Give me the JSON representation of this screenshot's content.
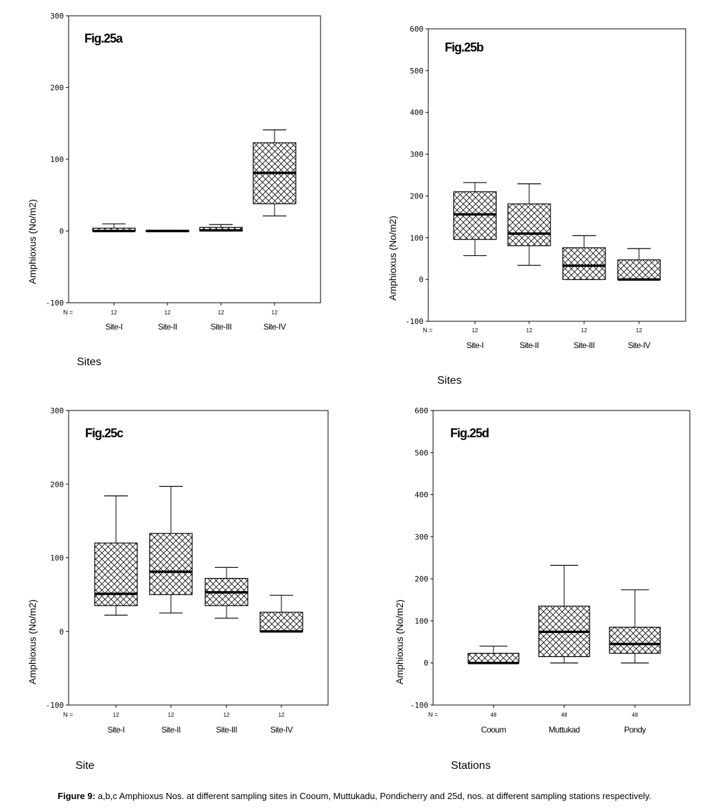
{
  "caption": {
    "label": "Figure 9:",
    "text": "a,b,c Amphioxus Nos. at different sampling sites in Cooum, Muttukadu, Pondicherry and 25d, nos. at different sampling stations respectively."
  },
  "chart_data": [
    {
      "type": "boxplot",
      "panel_label": "Fig.25a",
      "ylabel": "Amphioxus (No/m2)",
      "xlabel": "Sites",
      "ylim": [
        -100,
        300
      ],
      "yticks": [
        -100,
        0,
        100,
        200,
        300
      ],
      "n_label": "N =",
      "categories": [
        "Site-I",
        "Site-II",
        "Site-III",
        "Site-IV"
      ],
      "n": [
        "12",
        "12",
        "12",
        "12"
      ],
      "boxes": [
        {
          "min": 0,
          "q1": 0,
          "median": 0,
          "q3": 4,
          "max": 10
        },
        {
          "min": 0,
          "q1": 0,
          "median": 0,
          "q3": 1,
          "max": 1
        },
        {
          "min": 0,
          "q1": 0,
          "median": 1,
          "q3": 5,
          "max": 9
        },
        {
          "min": 21,
          "q1": 38,
          "median": 81,
          "q3": 123,
          "max": 141
        }
      ]
    },
    {
      "type": "boxplot",
      "panel_label": "Fig.25b",
      "ylabel": "Amphioxus (No/m2)",
      "xlabel": "Sites",
      "ylim": [
        -100,
        600
      ],
      "yticks": [
        -100,
        0,
        100,
        200,
        300,
        400,
        500,
        600
      ],
      "n_label": "N =",
      "categories": [
        "Site-I",
        "Site-II",
        "Site-III",
        "Site-IV"
      ],
      "n": [
        "12",
        "12",
        "12",
        "12"
      ],
      "boxes": [
        {
          "min": 57,
          "q1": 96,
          "median": 156,
          "q3": 210,
          "max": 232
        },
        {
          "min": 34,
          "q1": 81,
          "median": 110,
          "q3": 181,
          "max": 229
        },
        {
          "min": 0,
          "q1": 0,
          "median": 33,
          "q3": 76,
          "max": 105
        },
        {
          "min": 0,
          "q1": 0,
          "median": 0,
          "q3": 47,
          "max": 74
        }
      ]
    },
    {
      "type": "boxplot",
      "panel_label": "Fig.25c",
      "ylabel": "Amphioxus (No/m2)",
      "xlabel": "Site",
      "ylim": [
        -100,
        300
      ],
      "yticks": [
        -100,
        0,
        100,
        200,
        300
      ],
      "n_label": "N =",
      "categories": [
        "Site-I",
        "Site-II",
        "Site-III",
        "Site-IV"
      ],
      "n": [
        "12",
        "12",
        "12",
        "12"
      ],
      "boxes": [
        {
          "min": 22,
          "q1": 35,
          "median": 51,
          "q3": 120,
          "max": 184
        },
        {
          "min": 25,
          "q1": 50,
          "median": 81,
          "q3": 133,
          "max": 197
        },
        {
          "min": 18,
          "q1": 35,
          "median": 53,
          "q3": 72,
          "max": 87
        },
        {
          "min": 0,
          "q1": 0,
          "median": 0,
          "q3": 26,
          "max": 49
        }
      ]
    },
    {
      "type": "boxplot",
      "panel_label": "Fig.25d",
      "ylabel": "Amphioxus (No/m2)",
      "xlabel": "Stations",
      "ylim": [
        -100,
        600
      ],
      "yticks": [
        -100,
        0,
        100,
        200,
        300,
        400,
        500,
        600
      ],
      "n_label": "N =",
      "categories": [
        "Cooum",
        "Muttukad",
        "Pondy"
      ],
      "n": [
        "48",
        "48",
        "48"
      ],
      "boxes": [
        {
          "min": 0,
          "q1": 0,
          "median": 0,
          "q3": 23,
          "max": 40
        },
        {
          "min": 0,
          "q1": 15,
          "median": 74,
          "q3": 135,
          "max": 232
        },
        {
          "min": 0,
          "q1": 23,
          "median": 45,
          "q3": 85,
          "max": 174
        }
      ]
    }
  ]
}
